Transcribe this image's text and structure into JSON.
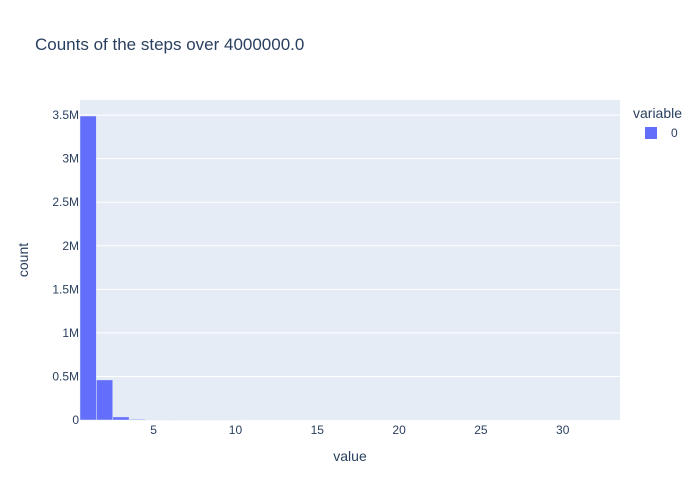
{
  "chart_data": {
    "type": "bar",
    "title": "Counts of the steps over 4000000.0",
    "xlabel": "value",
    "ylabel": "count",
    "bin_width": 1,
    "bins": [
      {
        "x0": 0.5,
        "x1": 1.5,
        "value": 3490000
      },
      {
        "x0": 1.5,
        "x1": 2.5,
        "value": 460000
      },
      {
        "x0": 2.5,
        "x1": 3.5,
        "value": 35000
      },
      {
        "x0": 3.5,
        "x1": 4.5,
        "value": 9000
      },
      {
        "x0": 4.5,
        "x1": 5.5,
        "value": 2500
      },
      {
        "x0": 5.5,
        "x1": 6.5,
        "value": 800
      },
      {
        "x0": 6.5,
        "x1": 7.5,
        "value": 300
      },
      {
        "x0": 7.5,
        "x1": 8.5,
        "value": 120
      },
      {
        "x0": 8.5,
        "x1": 9.5,
        "value": 50
      },
      {
        "x0": 9.5,
        "x1": 10.5,
        "value": 20
      }
    ],
    "xlim": [
      0.5,
      33.5
    ],
    "ylim": [
      0,
      3673684
    ],
    "xticks": [
      {
        "value": 5,
        "label": "5"
      },
      {
        "value": 10,
        "label": "10"
      },
      {
        "value": 15,
        "label": "15"
      },
      {
        "value": 20,
        "label": "20"
      },
      {
        "value": 25,
        "label": "25"
      },
      {
        "value": 30,
        "label": "30"
      }
    ],
    "yticks": [
      {
        "value": 0,
        "label": "0"
      },
      {
        "value": 500000,
        "label": "0.5M"
      },
      {
        "value": 1000000,
        "label": "1M"
      },
      {
        "value": 1500000,
        "label": "1.5M"
      },
      {
        "value": 2000000,
        "label": "2M"
      },
      {
        "value": 2500000,
        "label": "2.5M"
      },
      {
        "value": 3000000,
        "label": "3M"
      },
      {
        "value": 3500000,
        "label": "3.5M"
      }
    ],
    "grid": true,
    "legend": {
      "title": "variable",
      "placement": "top-right",
      "entries": [
        {
          "name": "0",
          "color": "#636efa"
        }
      ]
    },
    "colors": {
      "bar": "#636efa",
      "plot_bg": "#e5ecf6",
      "grid": "#ffffff",
      "text": "#2a3f5f"
    }
  }
}
